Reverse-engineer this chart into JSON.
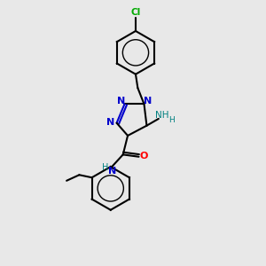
{
  "bg_color": "#e8e8e8",
  "bond_color": "#000000",
  "n_color": "#0000cc",
  "o_color": "#ff0000",
  "cl_color": "#00aa00",
  "h_color": "#008080",
  "figsize": [
    3.0,
    3.0
  ],
  "dpi": 100,
  "xlim": [
    0,
    10
  ],
  "ylim": [
    0,
    10
  ]
}
